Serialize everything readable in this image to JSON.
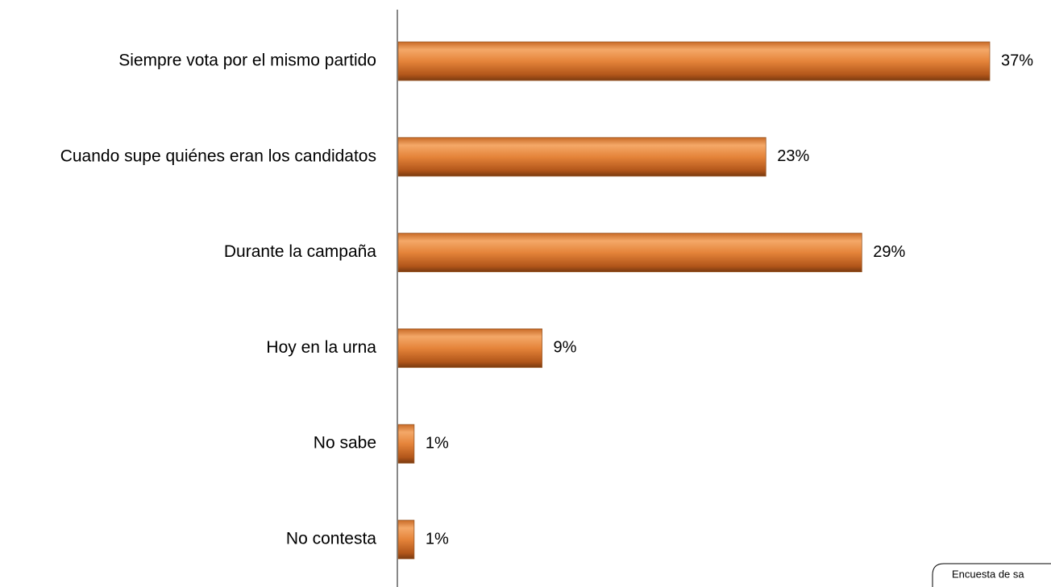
{
  "chart_data": {
    "type": "bar",
    "orientation": "horizontal",
    "categories": [
      "Siempre vota por el mismo partido",
      "Cuando supe quiénes eran los candidatos",
      "Durante la campaña",
      "Hoy en la urna",
      "No sabe",
      "No contesta"
    ],
    "values": [
      37,
      23,
      29,
      9,
      1,
      1
    ],
    "value_labels": [
      "37%",
      "23%",
      "29%",
      "9%",
      "1%",
      "1%"
    ],
    "color": "#e07b2b",
    "annotation": "Encuesta de sa"
  }
}
